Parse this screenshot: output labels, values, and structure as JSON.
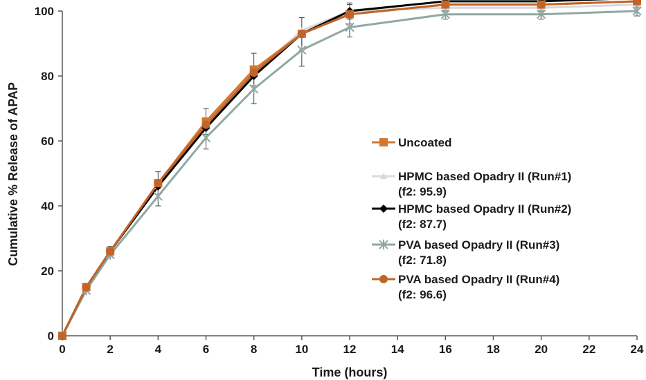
{
  "chart_data": {
    "type": "line",
    "xlabel": "Time (hours)",
    "ylabel": "Cumulative % Release of APAP",
    "xlim": [
      0,
      24
    ],
    "ylim": [
      0,
      100
    ],
    "xticks": [
      "0",
      "2",
      "4",
      "6",
      "8",
      "10",
      "12",
      "14",
      "16",
      "18",
      "20",
      "22",
      "24"
    ],
    "yticks": [
      "0",
      "20",
      "40",
      "60",
      "80",
      "100"
    ],
    "grid": false,
    "legend_position": "right",
    "x": [
      0,
      1,
      2,
      4,
      6,
      8,
      10,
      12,
      16,
      20,
      24
    ],
    "series": [
      {
        "name": "Uncoated",
        "sub": "",
        "color": "#d4772c",
        "marker": "square",
        "values": [
          0,
          15,
          26,
          47,
          66,
          82,
          93,
          99,
          102,
          102,
          103
        ],
        "errors": [
          0,
          0.8,
          1.5,
          3.5,
          4,
          5,
          5,
          3,
          2,
          2,
          2
        ]
      },
      {
        "name": "HPMC based Opadry II (Run#1)",
        "sub": "(f2: 95.9)",
        "color": "#d9d9d9",
        "marker": "triangle",
        "values": [
          0,
          15,
          26,
          46,
          65,
          81,
          94,
          100,
          101,
          101,
          102
        ],
        "errors": [
          0,
          0,
          0,
          0,
          0,
          0,
          0,
          0,
          0,
          0,
          0
        ]
      },
      {
        "name": "HPMC based Opadry II (Run#2)",
        "sub": "(f2: 87.7)",
        "color": "#000000",
        "marker": "diamond",
        "values": [
          0,
          15,
          26,
          46,
          64,
          80,
          93,
          100,
          103,
          103,
          104
        ],
        "errors": [
          0,
          0,
          0,
          0,
          0,
          0,
          0,
          2.5,
          1.5,
          1.5,
          1.5
        ]
      },
      {
        "name": "PVA based Opadry II (Run#3)",
        "sub": "(f2: 71.8)",
        "color": "#8fa8a3",
        "marker": "star",
        "values": [
          0,
          14,
          25,
          43,
          61,
          76,
          88,
          95,
          99,
          99,
          100
        ],
        "errors": [
          0,
          0,
          0,
          3,
          3.5,
          4.5,
          5,
          3,
          1.5,
          1.5,
          1.5
        ]
      },
      {
        "name": "PVA based Opadry II (Run#4)",
        "sub": "(f2: 96.6)",
        "color": "#c0642b",
        "marker": "circle",
        "values": [
          0,
          15,
          26,
          47,
          65,
          81,
          93,
          99,
          102,
          102,
          103
        ],
        "errors": [
          0,
          0,
          0,
          0,
          0,
          0,
          0,
          0,
          0,
          0,
          0
        ]
      }
    ]
  }
}
